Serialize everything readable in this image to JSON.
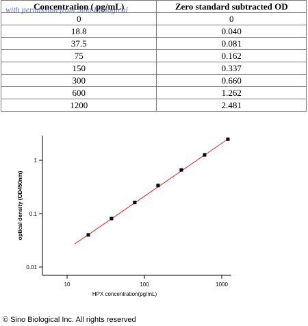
{
  "watermark": "with permission from Sino Biological",
  "table": {
    "header": [
      "Concentration ( pg/mL)",
      "Zero standard subtracted OD"
    ],
    "rows": [
      [
        "0",
        "0"
      ],
      [
        "18.8",
        "0.040"
      ],
      [
        "37.5",
        "0.081"
      ],
      [
        "75",
        "0.162"
      ],
      [
        "150",
        "0.337"
      ],
      [
        "300",
        "0.660"
      ],
      [
        "600",
        "1.262"
      ],
      [
        "1200",
        "2.481"
      ]
    ]
  },
  "chart_data": {
    "type": "scatter",
    "x_label": "HPX concentration(pg/mL)",
    "y_label": "optical density (OD450nm)",
    "x": [
      18.8,
      37.5,
      75,
      150,
      300,
      600,
      1200
    ],
    "values": [
      0.04,
      0.081,
      0.162,
      0.337,
      0.66,
      1.262,
      2.481
    ],
    "color": "#000000",
    "fit_line": {
      "x": [
        12.5,
        1200
      ],
      "y": [
        0.027,
        2.5
      ],
      "color": "#e02020"
    },
    "log_x": true,
    "log_y": true,
    "xlim": [
      4.8,
      1330
    ],
    "ylim": [
      0.007,
      2.9
    ],
    "xticks": [
      10,
      100,
      1000
    ],
    "yticks": [
      0.01,
      0.1,
      1
    ]
  },
  "footer": "© Sino Biological Inc. All rights reserved"
}
